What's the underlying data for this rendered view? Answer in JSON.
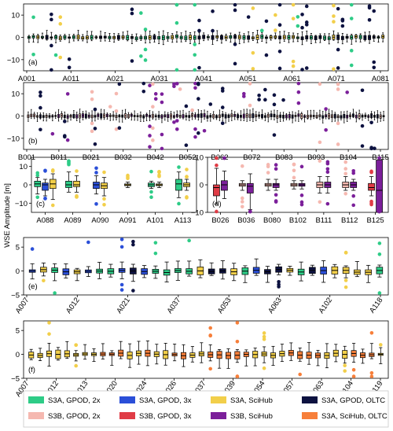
{
  "chart_data": {
    "type": "boxplot",
    "ylabel": "WSE Amplitude [m]",
    "legend": {
      "placement": "bottom",
      "entries": [
        {
          "name": "S3A, GPOD, 2x",
          "color": "#2ecc87"
        },
        {
          "name": "S3A, GPOD, 3x",
          "color": "#2b4fd8"
        },
        {
          "name": "S3A, SciHub",
          "color": "#f2cf4a"
        },
        {
          "name": "S3A, GPOD, OLTC",
          "color": "#0d1240"
        },
        {
          "name": "S3B, GPOD, 2x",
          "color": "#f5b8b0"
        },
        {
          "name": "S3B, GPOD, 3x",
          "color": "#e03c46"
        },
        {
          "name": "S3B, SciHub",
          "color": "#7b1f9a"
        },
        {
          "name": "S3A, SciHub, OLTC",
          "color": "#f77f3a"
        }
      ]
    },
    "panels": [
      {
        "label": "(a)",
        "ylim": [
          -15,
          15
        ],
        "yticks": [
          -10,
          0,
          10
        ],
        "xticks": [
          "A001",
          "A011",
          "A021",
          "A031",
          "A041",
          "A051",
          "A061",
          "A071",
          "A081"
        ],
        "series": [
          "S3A, GPOD, 2x",
          "S3A, SciHub",
          "S3A, GPOD, OLTC"
        ]
      },
      {
        "label": "(b)",
        "ylim": [
          -15,
          15
        ],
        "yticks": [
          -10,
          0,
          10
        ],
        "xticks": [
          "B001",
          "B011",
          "B021",
          "B032",
          "B042",
          "B052",
          "B062",
          "B072",
          "B083",
          "B093",
          "B104",
          "B115"
        ],
        "series": [
          "S3B, GPOD, 2x",
          "S3B, SciHub",
          "S3A, GPOD, OLTC"
        ]
      },
      {
        "label": "(c)",
        "ylim": [
          -15,
          15
        ],
        "yticks": [
          -10,
          0,
          10
        ],
        "xticks": [
          "A088",
          "A089",
          "A090",
          "A091",
          "A101",
          "A113"
        ],
        "series": [
          "S3A, GPOD, 2x",
          "S3A, GPOD, 3x",
          "S3A, SciHub",
          "S3A, GPOD, OLTC"
        ],
        "boxes": [
          {
            "x": "A088",
            "series": "S3A, GPOD, 2x",
            "q1": -1,
            "median": 0.5,
            "q3": 2,
            "wlo": -5,
            "whi": 4
          },
          {
            "x": "A088",
            "series": "S3A, GPOD, 3x",
            "q1": -3,
            "median": 0,
            "q3": 1,
            "wlo": -6,
            "whi": 3
          },
          {
            "x": "A088",
            "series": "S3A, SciHub",
            "q1": -2,
            "median": 0.5,
            "q3": 3,
            "wlo": -8,
            "whi": 6
          },
          {
            "x": "A089",
            "series": "S3A, GPOD, 2x",
            "q1": -1.5,
            "median": 0,
            "q3": 2,
            "wlo": -4,
            "whi": 7
          },
          {
            "x": "A089",
            "series": "S3A, SciHub",
            "q1": -1,
            "median": 0,
            "q3": 2,
            "wlo": -4,
            "whi": 5
          },
          {
            "x": "A090",
            "series": "S3A, GPOD, 3x",
            "q1": -2,
            "median": 0,
            "q3": 1.5,
            "wlo": -5,
            "whi": 5
          },
          {
            "x": "A090",
            "series": "S3A, SciHub",
            "q1": -2,
            "median": -0.5,
            "q3": 1,
            "wlo": -6,
            "whi": 4
          },
          {
            "x": "A091",
            "series": "S3A, SciHub",
            "q1": -0.5,
            "median": 0,
            "q3": 0.5,
            "wlo": -1.5,
            "whi": 1.5
          },
          {
            "x": "A101",
            "series": "S3A, GPOD, 2x",
            "q1": -1,
            "median": 0,
            "q3": 1,
            "wlo": -2,
            "whi": 2
          },
          {
            "x": "A101",
            "series": "S3A, SciHub",
            "q1": -0.5,
            "median": 0,
            "q3": 0.5,
            "wlo": -1.5,
            "whi": 1.5
          },
          {
            "x": "A113",
            "series": "S3A, GPOD, 2x",
            "q1": -3,
            "median": 0.5,
            "q3": 3,
            "wlo": -7,
            "whi": 7
          },
          {
            "x": "A113",
            "series": "S3A, SciHub",
            "q1": -1,
            "median": 0,
            "q3": 1,
            "wlo": -3,
            "whi": 3
          }
        ]
      },
      {
        "label": "(d)",
        "ylim": [
          -10,
          10
        ],
        "yticks": [
          -10,
          0,
          10
        ],
        "xticks": [
          "B026",
          "B036",
          "B080",
          "B102",
          "B111",
          "B112",
          "B125"
        ],
        "series": [
          "S3B, GPOD, 2x",
          "S3B, GPOD, 3x",
          "S3B, SciHub",
          "S3A, GPOD, OLTC"
        ],
        "boxes": [
          {
            "x": "B026",
            "series": "S3B, GPOD, 3x",
            "q1": -4,
            "median": -1,
            "q3": 0,
            "wlo": -7,
            "whi": 6
          },
          {
            "x": "B026",
            "series": "S3B, SciHub",
            "q1": -2,
            "median": 0,
            "q3": 1.5,
            "wlo": -5,
            "whi": 5
          },
          {
            "x": "B036",
            "series": "S3B, GPOD, 2x",
            "q1": -0.5,
            "median": 0,
            "q3": 0.5,
            "wlo": -2,
            "whi": 1.5
          },
          {
            "x": "B036",
            "series": "S3B, SciHub",
            "q1": -3,
            "median": -0.5,
            "q3": 0.5,
            "wlo": -9,
            "whi": 4
          },
          {
            "x": "B080",
            "series": "S3B, GPOD, 2x",
            "q1": -0.5,
            "median": 0,
            "q3": 0.5,
            "wlo": -2,
            "whi": 2
          },
          {
            "x": "B080",
            "series": "S3B, SciHub",
            "q1": -1,
            "median": 0,
            "q3": 0.5,
            "wlo": -2,
            "whi": 2
          },
          {
            "x": "B102",
            "series": "S3B, GPOD, 2x",
            "q1": -0.5,
            "median": 0,
            "q3": 0.5,
            "wlo": -1.5,
            "whi": 1.5
          },
          {
            "x": "B102",
            "series": "S3B, SciHub",
            "q1": -0.5,
            "median": 0,
            "q3": 0.5,
            "wlo": -1.5,
            "whi": 1.5
          },
          {
            "x": "B111",
            "series": "S3B, GPOD, 2x",
            "q1": -1,
            "median": 0,
            "q3": 1,
            "wlo": -3,
            "whi": 3
          },
          {
            "x": "B111",
            "series": "S3B, SciHub",
            "q1": -1,
            "median": 0,
            "q3": 1,
            "wlo": -3,
            "whi": 3
          },
          {
            "x": "B112",
            "series": "S3B, GPOD, 2x",
            "q1": -1,
            "median": 0,
            "q3": 1,
            "wlo": -2,
            "whi": 3
          },
          {
            "x": "B112",
            "series": "S3B, SciHub",
            "q1": -1,
            "median": 0,
            "q3": 1,
            "wlo": -2,
            "whi": 2
          },
          {
            "x": "B125",
            "series": "S3B, GPOD, 3x",
            "q1": -2,
            "median": -1,
            "q3": 0.5,
            "wlo": -4,
            "whi": 3
          },
          {
            "x": "B125",
            "series": "S3B, SciHub",
            "q1": -10,
            "median": -2,
            "q3": 9,
            "wlo": -10,
            "whi": 10
          }
        ]
      },
      {
        "label": "(e)",
        "ylim": [
          -5,
          7
        ],
        "yticks": [
          -5,
          0,
          5
        ],
        "xticks": [
          "A007",
          "A012",
          "A021",
          "A037",
          "A053",
          "A063",
          "A102",
          "A118"
        ],
        "series": [
          "S3A, GPOD, 2x",
          "S3A, GPOD, 3x",
          "S3A, SciHub",
          "S3A, GPOD, OLTC"
        ]
      },
      {
        "label": "(f)",
        "ylim": [
          -5,
          7
        ],
        "yticks": [
          -5,
          0,
          5
        ],
        "xticks": [
          "A007",
          "A012",
          "A013",
          "A020",
          "A024",
          "A026",
          "A037",
          "A039",
          "A054",
          "A057",
          "A063",
          "A104",
          "A119"
        ],
        "series": [
          "S3A, SciHub",
          "S3A, SciHub, OLTC"
        ]
      }
    ]
  }
}
